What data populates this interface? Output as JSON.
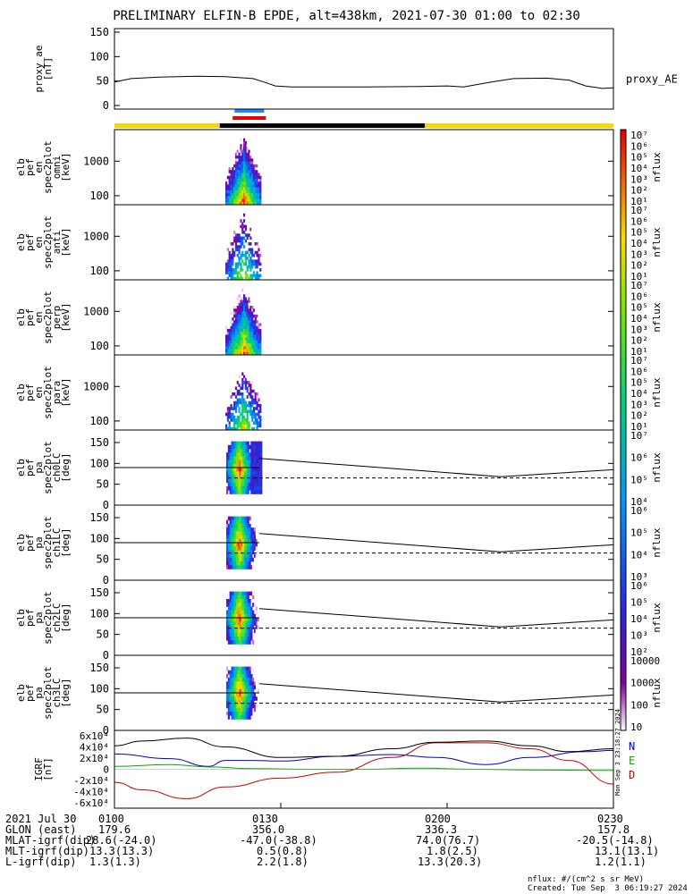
{
  "title": "PRELIMINARY ELFIN-B EPDE, alt=438km, 2021-07-30 01:00 to 02:30",
  "chart_data": {
    "type": "line",
    "time_range": [
      "01:00",
      "02:30"
    ],
    "panels": [
      {
        "id": "proxy_ae",
        "ylabel": [
          "proxy_ae",
          "[nT]"
        ],
        "yticks": [
          "0",
          "50",
          "100",
          "150"
        ],
        "ylim": [
          0,
          150
        ],
        "legend": "proxy_AE",
        "series": [
          {
            "name": "proxy_AE",
            "t_min": [
              0,
              3,
              8,
              15,
              20,
              25,
              27,
              29,
              32,
              45,
              55,
              60,
              63,
              65,
              68,
              72,
              78,
              82,
              85,
              88,
              90
            ],
            "values": [
              48,
              55,
              58,
              60,
              59,
              55,
              48,
              40,
              38,
              38,
              39,
              40,
              38,
              42,
              48,
              55,
              56,
              52,
              40,
              35,
              36
            ]
          }
        ]
      },
      {
        "id": "en_omni",
        "ylabel": [
          "elb",
          "pef",
          "en",
          "spec2plot",
          "omni",
          "[keV]"
        ],
        "yticks": [
          "100",
          "1000"
        ],
        "type": "spectrogram",
        "colorbar": "nflux"
      },
      {
        "id": "en_anti",
        "ylabel": [
          "elb",
          "pef",
          "en",
          "spec2plot",
          "anti",
          "[keV]"
        ],
        "yticks": [
          "100",
          "1000"
        ],
        "type": "spectrogram",
        "colorbar": "nflux"
      },
      {
        "id": "en_perp",
        "ylabel": [
          "elb",
          "pef",
          "en",
          "spec2plot",
          "perp",
          "[keV]"
        ],
        "yticks": [
          "100",
          "1000"
        ],
        "type": "spectrogram",
        "colorbar": "nflux"
      },
      {
        "id": "en_para",
        "ylabel": [
          "elb",
          "pef",
          "en",
          "spec2plot",
          "para",
          "[keV]"
        ],
        "yticks": [
          "100",
          "1000"
        ],
        "type": "spectrogram",
        "colorbar": "nflux"
      },
      {
        "id": "pa_ch0",
        "ylabel": [
          "elb",
          "pef",
          "pa",
          "spec2plot",
          "ch0LC",
          "[deg]"
        ],
        "yticks": [
          "0",
          "50",
          "100",
          "150"
        ],
        "type": "spectrogram",
        "colorbar": "nflux"
      },
      {
        "id": "pa_ch1",
        "ylabel": [
          "elb",
          "pef",
          "pa",
          "spec2plot",
          "ch1LC",
          "[deg]"
        ],
        "yticks": [
          "0",
          "50",
          "100",
          "150"
        ],
        "type": "spectrogram",
        "colorbar": "nflux"
      },
      {
        "id": "pa_ch2",
        "ylabel": [
          "elb",
          "pef",
          "pa",
          "spec2plot",
          "ch2LC",
          "[deg]"
        ],
        "yticks": [
          "0",
          "50",
          "100",
          "150"
        ],
        "type": "spectrogram",
        "colorbar": "nflux"
      },
      {
        "id": "pa_ch3",
        "ylabel": [
          "elb",
          "pef",
          "pa",
          "spec2plot",
          "ch3LC",
          "[deg]"
        ],
        "yticks": [
          "0",
          "50",
          "100",
          "150"
        ],
        "type": "spectrogram",
        "colorbar": "nflux"
      },
      {
        "id": "igrf",
        "ylabel": [
          "IGRF",
          "[nT]"
        ],
        "yticks": [
          "6x10⁴",
          "4x10⁴",
          "2x10⁴",
          "0",
          "-2x10⁴",
          "-4x10⁴",
          "-6x10⁴"
        ],
        "ylim": [
          -60000,
          60000
        ],
        "legend": [
          "N",
          "E",
          "D"
        ],
        "series": [
          {
            "name": "N",
            "color": "#0000cc",
            "t_min": [
              0,
              10,
              17,
              20,
              25,
              30,
              40,
              50,
              58,
              67,
              75,
              85,
              90
            ],
            "values": [
              26000,
              18000,
              5000,
              15000,
              15000,
              14000,
              22000,
              25000,
              20000,
              8000,
              20000,
              30000,
              32000
            ]
          },
          {
            "name": "E",
            "color": "#00aa00",
            "t_min": [
              0,
              10,
              17,
              25,
              35,
              45,
              55,
              65,
              75,
              90
            ],
            "values": [
              5000,
              8000,
              4000,
              1000,
              0,
              0,
              2000,
              0,
              -1000,
              -2000
            ]
          },
          {
            "name": "D",
            "color": "#cc0000",
            "t_min": [
              0,
              5,
              13,
              20,
              30,
              40,
              50,
              58,
              67,
              75,
              82,
              90
            ],
            "values": [
              -22000,
              -35000,
              -50000,
              -30000,
              -15000,
              -5000,
              20000,
              45000,
              45000,
              35000,
              15000,
              -25000
            ]
          },
          {
            "name": "|B|",
            "color": "#000000",
            "t_min": [
              0,
              5,
              13,
              20,
              30,
              40,
              50,
              58,
              67,
              75,
              82,
              90
            ],
            "values": [
              40000,
              48000,
              53000,
              38000,
              20000,
              22000,
              35000,
              46000,
              48000,
              40000,
              30000,
              35000
            ]
          }
        ]
      }
    ],
    "colorbars": [
      {
        "panel": "en_omni",
        "labels": [
          "10⁷",
          "10⁶",
          "10⁵",
          "10⁴",
          "10³",
          "10²",
          "10¹"
        ],
        "units": "nflux"
      },
      {
        "panel": "en_anti",
        "labels": [
          "10⁷",
          "10⁶",
          "10⁵",
          "10⁴",
          "10³",
          "10²",
          "10¹"
        ],
        "units": "nflux"
      },
      {
        "panel": "en_perp",
        "labels": [
          "10⁷",
          "10⁶",
          "10⁵",
          "10⁴",
          "10³",
          "10²",
          "10¹"
        ],
        "units": "nflux"
      },
      {
        "panel": "en_para",
        "labels": [
          "10⁷",
          "10⁶",
          "10⁵",
          "10⁴",
          "10³",
          "10²",
          "10¹"
        ],
        "units": "nflux"
      },
      {
        "panel": "pa_ch0",
        "labels": [
          "10⁷",
          "10⁶",
          "10⁵",
          "10⁴"
        ],
        "units": "nflux"
      },
      {
        "panel": "pa_ch1",
        "labels": [
          "10⁶",
          "10⁵",
          "10⁴",
          "10³"
        ],
        "units": "nflux"
      },
      {
        "panel": "pa_ch2",
        "labels": [
          "10⁶",
          "10⁵",
          "10⁴",
          "10³",
          "10²"
        ],
        "units": "nflux"
      },
      {
        "panel": "pa_ch3",
        "labels": [
          "10000",
          "1000",
          "100",
          "10"
        ],
        "units": "nflux"
      }
    ],
    "status_bar": [
      {
        "from_min": 0,
        "to_min": 19,
        "color": "#f5d800"
      },
      {
        "from_min": 19,
        "to_min": 56,
        "color": "#000000"
      },
      {
        "from_min": 56,
        "to_min": 90,
        "color": "#f5d800"
      }
    ],
    "markers": [
      {
        "from_min": 21,
        "to_min": 27,
        "color": "#1a8cff"
      },
      {
        "from_min": 21,
        "to_min": 27,
        "color": "#ee0000"
      }
    ]
  },
  "ephemeris": {
    "rows": [
      {
        "label": "2021 Jul 30",
        "values": [
          "0100",
          "0130",
          "0200",
          "0230"
        ]
      },
      {
        "label": "GLON (east)",
        "values": [
          "179.6",
          "356.0",
          "336.3",
          "157.8"
        ]
      },
      {
        "label": "MLAT-igrf(dip)",
        "values": [
          "28.6(-24.0)",
          "-47.0(-38.8)",
          "74.0(76.7)",
          "-20.5(-14.8)"
        ]
      },
      {
        "label": "MLT-igrf(dip)",
        "values": [
          "13.3(13.3)",
          "0.5(0.8)",
          "1.8(2.5)",
          "13.1(13.1)"
        ]
      },
      {
        "label": "L-igrf(dip)",
        "values": [
          "1.3(1.3)",
          "2.2(1.8)",
          "13.3(20.3)",
          "1.2(1.1)"
        ]
      }
    ]
  },
  "footer": {
    "units_note": "nflux: #/(cm^2 s sr MeV)",
    "created": "Created: Tue Sep  3 06:19:27 2024",
    "side_stamp": "Mon Sep  3 23:18:27 2024"
  }
}
